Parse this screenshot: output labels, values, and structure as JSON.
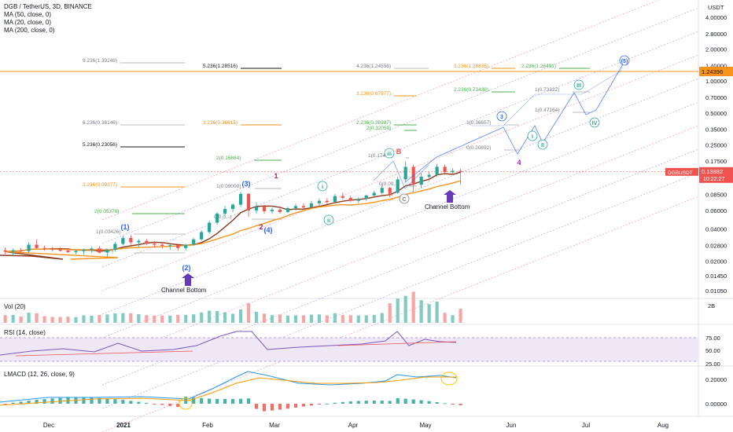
{
  "header": {
    "symbol_title": "DGB / TetherUS, 3D, BINANCE",
    "indicators": [
      "MA (50, close, 0)",
      "MA (20, close, 0)",
      "MA (200, close, 0)"
    ]
  },
  "price_axis": {
    "currency": "USDT",
    "ticks": [
      "4.00000",
      "2.80000",
      "2.00000",
      "1.40000",
      "1.00000",
      "0.70000",
      "0.50000",
      "0.35000",
      "0.25000",
      "0.17500",
      "0.12500",
      "0.08500",
      "0.06000",
      "0.04000",
      "0.02800",
      "0.02000",
      "0.01450",
      "0.01050"
    ],
    "ticker_label": "DGBUSDT",
    "last_price": "0.13882",
    "countdown": "10:22:27",
    "target_price": "1.24396"
  },
  "time_axis": {
    "labels": [
      "Dec",
      "2021",
      "Feb",
      "Mar",
      "Apr",
      "May",
      "Jun",
      "Jul",
      "Aug"
    ]
  },
  "fib_levels": [
    {
      "text": "9.236(1.39249)",
      "color": "#787b86"
    },
    {
      "text": "5.236(1.28516)",
      "color": "#131722"
    },
    {
      "text": "4.236(1.24556)",
      "color": "#787b86"
    },
    {
      "text": "3.236(1.28835)",
      "color": "#f7931a"
    },
    {
      "text": "2.236(1.26491)",
      "color": "#4caf50"
    },
    {
      "text": "2.236(0.73438)",
      "color": "#4caf50"
    },
    {
      "text": "3.236(0.67877)",
      "color": "#f7931a"
    },
    {
      "text": "1(0.73322)",
      "color": "#787b86"
    },
    {
      "text": "1(0.47164)",
      "color": "#787b86"
    },
    {
      "text": "6.236(0.36146)",
      "color": "#787b86"
    },
    {
      "text": "3.236(0.36615)",
      "color": "#f7931a"
    },
    {
      "text": "2.236(0.36987)",
      "color": "#4caf50"
    },
    {
      "text": "1(0.36657)",
      "color": "#787b86"
    },
    {
      "text": "2(0.32050)",
      "color": "#4caf50"
    },
    {
      "text": "5.236(0.23056)",
      "color": "#131722"
    },
    {
      "text": "0(0.20892)",
      "color": "#787b86"
    },
    {
      "text": "1(0.17482)",
      "color": "#787b86"
    },
    {
      "text": "2(0.16864)",
      "color": "#4caf50"
    },
    {
      "text": "3.236(0.09377)",
      "color": "#f7931a"
    },
    {
      "text": "1(0.09000)",
      "color": "#787b86"
    },
    {
      "text": "0(0.09...)",
      "color": "#787b86"
    },
    {
      "text": "2(0.05376)",
      "color": "#4caf50"
    },
    {
      "text": "1(0.03426)",
      "color": "#787b86"
    },
    {
      "text": "0(0.0...)",
      "color": "#787b86"
    },
    {
      "text": "0(0.0...)",
      "color": "#787b86"
    }
  ],
  "wave_labels": [
    "(1)",
    "(2)",
    "(3)",
    "(4)",
    "(5)",
    "1",
    "2",
    "3",
    "4",
    "5",
    "i",
    "ii",
    "iii",
    "iv",
    "A",
    "B",
    "C",
    "I",
    "II",
    "III",
    "IV"
  ],
  "annotations": [
    "Channel Bottom",
    "Channel Bottom"
  ],
  "volume": {
    "title": "Vol (20)",
    "axis": [
      "2B"
    ]
  },
  "rsi": {
    "title": "RSI (14, close)",
    "axis": [
      "75.00",
      "50.00",
      "25.00"
    ]
  },
  "lmacd": {
    "title": "LMACD (12, 26, close, 9)",
    "axis": [
      "0.20000",
      "0.00000"
    ]
  },
  "colors": {
    "up": "#26a69a",
    "down": "#ef5350",
    "ma50": "#f7931a",
    "ma20": "#8b3a1a",
    "wave": "#2962ff",
    "rsi": "#7e57c2",
    "macd": "#2196f3",
    "signal": "#ff9800"
  },
  "chart_data": {
    "type": "candlestick",
    "title": "DGB / TetherUS, 3D, BINANCE",
    "interval": "3D",
    "y_scale": "log",
    "ylim": [
      0.0105,
      4.0
    ],
    "x_range": [
      "2020-11-20",
      "2021-08-10"
    ],
    "candles": [
      {
        "date": "2020-11-22",
        "o": 0.0252,
        "h": 0.0268,
        "l": 0.0232,
        "c": 0.0245
      },
      {
        "date": "2020-11-25",
        "o": 0.0245,
        "h": 0.0262,
        "l": 0.0225,
        "c": 0.0252
      },
      {
        "date": "2020-11-28",
        "o": 0.0252,
        "h": 0.0265,
        "l": 0.024,
        "c": 0.0248
      },
      {
        "date": "2020-12-01",
        "o": 0.0248,
        "h": 0.03,
        "l": 0.024,
        "c": 0.0285
      },
      {
        "date": "2020-12-04",
        "o": 0.0285,
        "h": 0.032,
        "l": 0.026,
        "c": 0.0265
      },
      {
        "date": "2020-12-07",
        "o": 0.0265,
        "h": 0.028,
        "l": 0.025,
        "c": 0.0262
      },
      {
        "date": "2020-12-10",
        "o": 0.0262,
        "h": 0.027,
        "l": 0.0248,
        "c": 0.0258
      },
      {
        "date": "2020-12-13",
        "o": 0.0258,
        "h": 0.0268,
        "l": 0.0245,
        "c": 0.025
      },
      {
        "date": "2020-12-16",
        "o": 0.025,
        "h": 0.0262,
        "l": 0.0238,
        "c": 0.0242
      },
      {
        "date": "2020-12-19",
        "o": 0.0242,
        "h": 0.0252,
        "l": 0.0232,
        "c": 0.0248
      },
      {
        "date": "2020-12-22",
        "o": 0.0248,
        "h": 0.0262,
        "l": 0.0228,
        "c": 0.0256
      },
      {
        "date": "2020-12-25",
        "o": 0.0256,
        "h": 0.0272,
        "l": 0.024,
        "c": 0.0262
      },
      {
        "date": "2020-12-28",
        "o": 0.0262,
        "h": 0.0275,
        "l": 0.0236,
        "c": 0.024
      },
      {
        "date": "2020-12-31",
        "o": 0.024,
        "h": 0.026,
        "l": 0.022,
        "c": 0.0255
      },
      {
        "date": "2021-01-03",
        "o": 0.0255,
        "h": 0.03,
        "l": 0.0245,
        "c": 0.029
      },
      {
        "date": "2021-01-06",
        "o": 0.029,
        "h": 0.0345,
        "l": 0.028,
        "c": 0.033
      },
      {
        "date": "2021-01-09",
        "o": 0.033,
        "h": 0.035,
        "l": 0.0285,
        "c": 0.03
      },
      {
        "date": "2021-01-12",
        "o": 0.03,
        "h": 0.0322,
        "l": 0.027,
        "c": 0.031
      },
      {
        "date": "2021-01-15",
        "o": 0.031,
        "h": 0.0325,
        "l": 0.0282,
        "c": 0.0292
      },
      {
        "date": "2021-01-18",
        "o": 0.0292,
        "h": 0.0308,
        "l": 0.027,
        "c": 0.0285
      },
      {
        "date": "2021-01-21",
        "o": 0.0285,
        "h": 0.03,
        "l": 0.0262,
        "c": 0.0278
      },
      {
        "date": "2021-01-24",
        "o": 0.0278,
        "h": 0.029,
        "l": 0.0255,
        "c": 0.0282
      },
      {
        "date": "2021-01-27",
        "o": 0.0282,
        "h": 0.0292,
        "l": 0.025,
        "c": 0.0265
      },
      {
        "date": "2021-01-30",
        "o": 0.0265,
        "h": 0.029,
        "l": 0.025,
        "c": 0.0285
      },
      {
        "date": "2021-02-02",
        "o": 0.0285,
        "h": 0.033,
        "l": 0.0278,
        "c": 0.032
      },
      {
        "date": "2021-02-05",
        "o": 0.032,
        "h": 0.039,
        "l": 0.031,
        "c": 0.0375
      },
      {
        "date": "2021-02-08",
        "o": 0.0375,
        "h": 0.048,
        "l": 0.036,
        "c": 0.046
      },
      {
        "date": "2021-02-11",
        "o": 0.046,
        "h": 0.058,
        "l": 0.044,
        "c": 0.056
      },
      {
        "date": "2021-02-14",
        "o": 0.056,
        "h": 0.066,
        "l": 0.052,
        "c": 0.062
      },
      {
        "date": "2021-02-17",
        "o": 0.062,
        "h": 0.07,
        "l": 0.058,
        "c": 0.068
      },
      {
        "date": "2021-02-20",
        "o": 0.068,
        "h": 0.09,
        "l": 0.065,
        "c": 0.086
      },
      {
        "date": "2021-02-23",
        "o": 0.086,
        "h": 0.088,
        "l": 0.052,
        "c": 0.06
      },
      {
        "date": "2021-02-26",
        "o": 0.06,
        "h": 0.072,
        "l": 0.056,
        "c": 0.065
      },
      {
        "date": "2021-03-01",
        "o": 0.065,
        "h": 0.068,
        "l": 0.056,
        "c": 0.059
      },
      {
        "date": "2021-03-04",
        "o": 0.059,
        "h": 0.064,
        "l": 0.0555,
        "c": 0.061
      },
      {
        "date": "2021-03-07",
        "o": 0.061,
        "h": 0.066,
        "l": 0.056,
        "c": 0.058
      },
      {
        "date": "2021-03-10",
        "o": 0.058,
        "h": 0.065,
        "l": 0.057,
        "c": 0.063
      },
      {
        "date": "2021-03-13",
        "o": 0.063,
        "h": 0.069,
        "l": 0.06,
        "c": 0.066
      },
      {
        "date": "2021-03-16",
        "o": 0.066,
        "h": 0.07,
        "l": 0.061,
        "c": 0.064
      },
      {
        "date": "2021-03-19",
        "o": 0.064,
        "h": 0.074,
        "l": 0.063,
        "c": 0.07
      },
      {
        "date": "2021-03-22",
        "o": 0.07,
        "h": 0.078,
        "l": 0.066,
        "c": 0.074
      },
      {
        "date": "2021-03-25",
        "o": 0.074,
        "h": 0.079,
        "l": 0.069,
        "c": 0.072
      },
      {
        "date": "2021-03-28",
        "o": 0.072,
        "h": 0.086,
        "l": 0.07,
        "c": 0.082
      },
      {
        "date": "2021-03-31",
        "o": 0.082,
        "h": 0.088,
        "l": 0.076,
        "c": 0.079
      },
      {
        "date": "2021-04-03",
        "o": 0.079,
        "h": 0.083,
        "l": 0.072,
        "c": 0.074
      },
      {
        "date": "2021-04-06",
        "o": 0.074,
        "h": 0.08,
        "l": 0.07,
        "c": 0.077
      },
      {
        "date": "2021-04-09",
        "o": 0.077,
        "h": 0.085,
        "l": 0.074,
        "c": 0.083
      },
      {
        "date": "2021-04-12",
        "o": 0.083,
        "h": 0.092,
        "l": 0.079,
        "c": 0.088
      },
      {
        "date": "2021-04-15",
        "o": 0.088,
        "h": 0.105,
        "l": 0.085,
        "c": 0.098
      },
      {
        "date": "2021-04-18",
        "o": 0.098,
        "h": 0.1,
        "l": 0.08,
        "c": 0.088
      },
      {
        "date": "2021-04-21",
        "o": 0.088,
        "h": 0.125,
        "l": 0.086,
        "c": 0.118
      },
      {
        "date": "2021-04-24",
        "o": 0.118,
        "h": 0.174,
        "l": 0.11,
        "c": 0.155
      },
      {
        "date": "2021-04-27",
        "o": 0.155,
        "h": 0.162,
        "l": 0.09,
        "c": 0.105
      },
      {
        "date": "2021-04-30",
        "o": 0.105,
        "h": 0.135,
        "l": 0.098,
        "c": 0.125
      },
      {
        "date": "2021-05-03",
        "o": 0.125,
        "h": 0.14,
        "l": 0.115,
        "c": 0.13
      },
      {
        "date": "2021-05-06",
        "o": 0.13,
        "h": 0.165,
        "l": 0.125,
        "c": 0.155
      },
      {
        "date": "2021-05-09",
        "o": 0.155,
        "h": 0.162,
        "l": 0.13,
        "c": 0.138
      },
      {
        "date": "2021-05-12",
        "o": 0.138,
        "h": 0.15,
        "l": 0.13,
        "c": 0.142
      },
      {
        "date": "2021-05-15",
        "o": 0.142,
        "h": 0.148,
        "l": 0.105,
        "c": 0.1388
      }
    ]
  }
}
